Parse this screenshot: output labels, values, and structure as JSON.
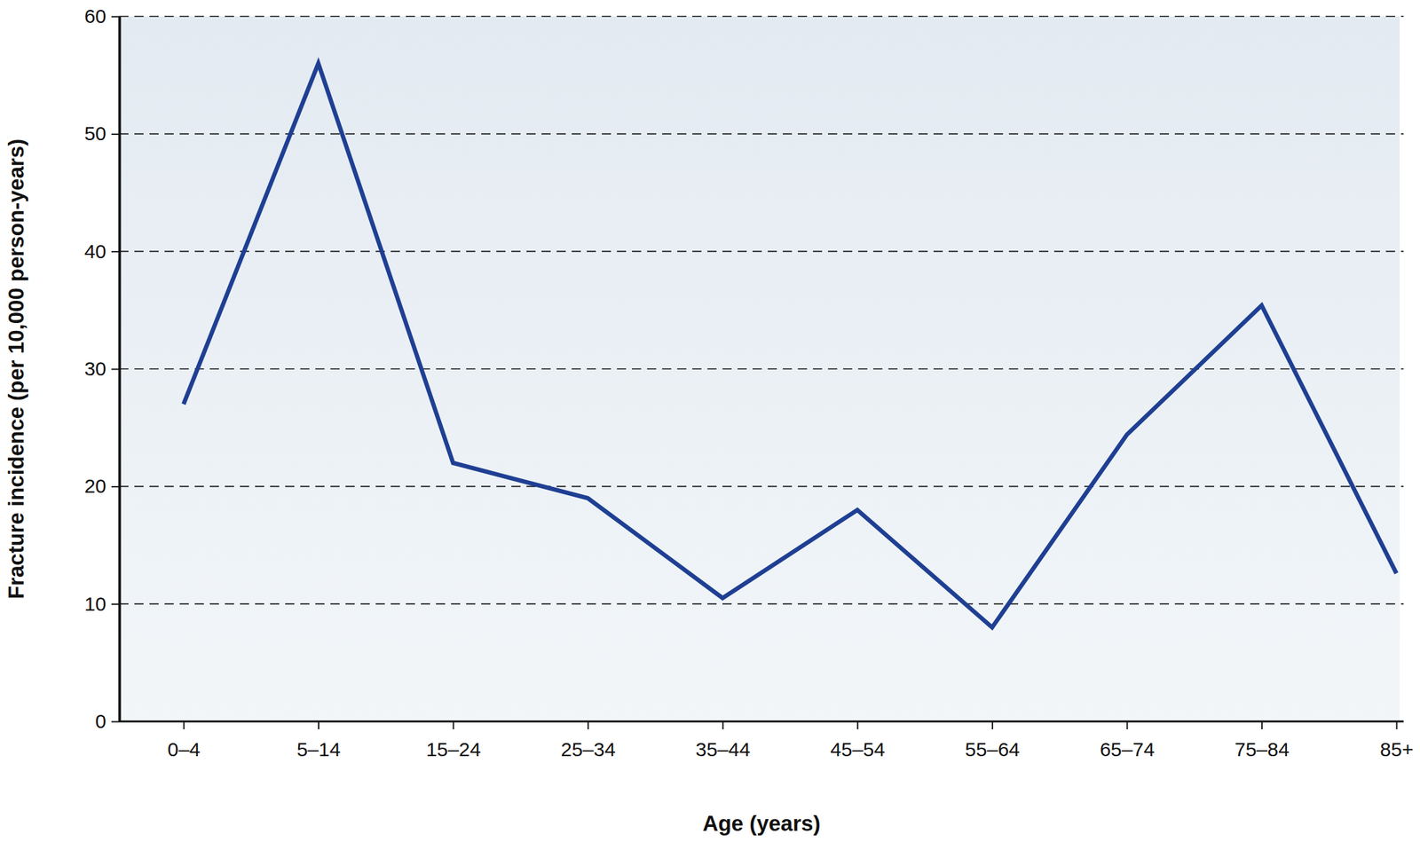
{
  "chart_data": {
    "type": "line",
    "xlabel": "Age (years)",
    "ylabel": "Fracture incidence (per 10,000 person-years)",
    "categories": [
      "0–4",
      "5–14",
      "15–24",
      "25–34",
      "35–44",
      "45–54",
      "55–64",
      "65–74",
      "75–84",
      "85+"
    ],
    "values": [
      27,
      56,
      22,
      19,
      10.5,
      18,
      8,
      24.4,
      35.4,
      12.6
    ],
    "color": "#1f3f93",
    "ylim": [
      0,
      60
    ],
    "yticks": [
      0,
      10,
      20,
      30,
      40,
      50,
      60
    ],
    "grid": true
  }
}
